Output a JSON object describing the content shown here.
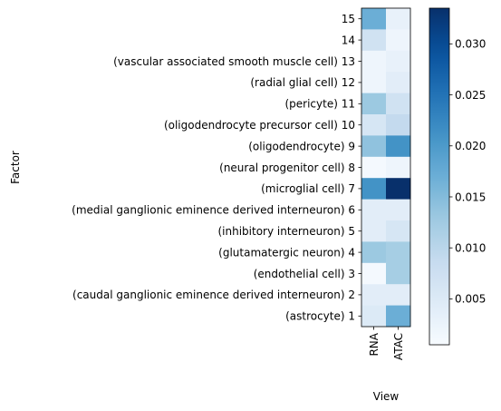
{
  "chart_data": {
    "type": "heatmap",
    "xlabel": "View",
    "ylabel": "Factor",
    "x_categories": [
      "RNA",
      "ATAC"
    ],
    "y_categories": [
      "15",
      "14",
      "(vascular associated smooth muscle cell) 13",
      "(radial glial cell) 12",
      "(pericyte) 11",
      "(oligodendrocyte precursor cell) 10",
      "(oligodendrocyte) 9",
      "(neural progenitor cell) 8",
      "(microglial cell) 7",
      "(medial ganglionic eminence derived interneuron) 6",
      "(inhibitory interneuron) 5",
      "(glutamatergic neuron) 4",
      "(endothelial cell) 3",
      "(caudal ganglionic eminence derived interneuron) 2",
      "(astrocyte) 1"
    ],
    "values": [
      [
        0.017,
        0.003
      ],
      [
        0.007,
        0.002
      ],
      [
        0.002,
        0.003
      ],
      [
        0.002,
        0.004
      ],
      [
        0.013,
        0.007
      ],
      [
        0.006,
        0.009
      ],
      [
        0.014,
        0.021
      ],
      [
        0.001,
        0.002
      ],
      [
        0.021,
        0.0335
      ],
      [
        0.004,
        0.004
      ],
      [
        0.004,
        0.006
      ],
      [
        0.013,
        0.012
      ],
      [
        0.001,
        0.012
      ],
      [
        0.004,
        0.004
      ],
      [
        0.005,
        0.017
      ]
    ],
    "colorbar": {
      "min": 0.0005,
      "max": 0.0335,
      "ticks": [
        0.005,
        0.01,
        0.015,
        0.02,
        0.025,
        0.03
      ],
      "tick_labels": [
        "0.005",
        "0.010",
        "0.015",
        "0.020",
        "0.025",
        "0.030"
      ],
      "colormap": "Blues"
    }
  }
}
